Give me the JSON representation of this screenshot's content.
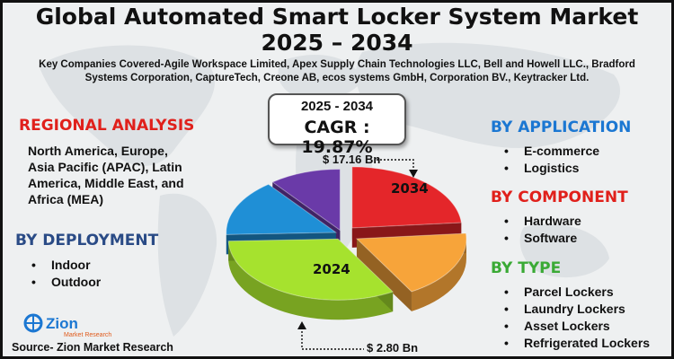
{
  "header": {
    "title_line1": "Global Automated Smart Locker System Market",
    "title_line2": "2025 – 2034",
    "companies_line1": "Key Companies Covered-Agile Workspace Limited, Apex Supply Chain Technologies LLC, Bell and Howell LLC., Bradford",
    "companies_line2": "Systems Corporation, CaptureTech, Creone AB, ecos systems GmbH, Corporation BV., Keytracker Ltd."
  },
  "cagr": {
    "years": "2025 - 2034",
    "value": "CAGR : 19.87%"
  },
  "regional": {
    "heading": "REGIONAL ANALYSIS",
    "line1": "North America, Europe,",
    "line2": "Asia Pacific (APAC), Latin",
    "line3": "America, Middle East, and",
    "line4": "Africa (MEA)"
  },
  "deployment": {
    "heading": "BY DEPLOYMENT",
    "items": [
      "Indoor",
      "Outdoor"
    ]
  },
  "application": {
    "heading": "BY APPLICATION",
    "items": [
      "E-commerce",
      "Logistics"
    ]
  },
  "component": {
    "heading": "BY COMPONENT",
    "items": [
      "Hardware",
      "Software"
    ]
  },
  "type": {
    "heading": "BY TYPE",
    "items": [
      "Parcel Lockers",
      "Laundry Lockers",
      "Asset Lockers",
      "Refrigerated Lockers"
    ]
  },
  "logo": {
    "name": "Zion",
    "sub": "Market Research"
  },
  "source": "Source- Zion Market Research",
  "colors": {
    "red": "#e4262a",
    "orange": "#f7a43a",
    "green": "#a6e22e",
    "blue": "#1f8fd6",
    "purple": "#6a3aa8"
  },
  "chart_data": {
    "type": "pie",
    "style": "3d-exploded",
    "slices": [
      {
        "label": "2034",
        "color": "#e4262a"
      },
      {
        "label": "",
        "color": "#f7a43a"
      },
      {
        "label": "2024",
        "color": "#a6e22e"
      },
      {
        "label": "",
        "color": "#1f8fd6"
      },
      {
        "label": "",
        "color": "#6a3aa8"
      }
    ],
    "annotations": [
      {
        "text": "$ 17.16 Bn",
        "refers_to": "2034"
      },
      {
        "text": "$ 2.80 Bn",
        "refers_to": "2024"
      }
    ]
  }
}
